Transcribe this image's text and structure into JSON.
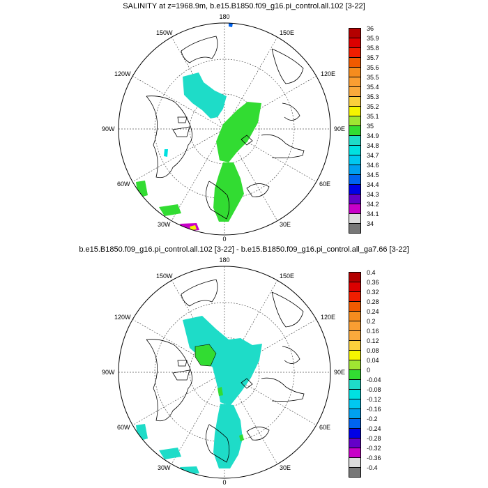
{
  "maps": [
    {
      "title": "SALINITY at z=1968.9m, b.e15.B1850.f09_g16.pi_control.all.102 [3-22]",
      "lon_labels": {
        "top": "180",
        "bottom": "0",
        "left": "90W",
        "right": "90E",
        "ul150": "150W",
        "ul120": "120W",
        "ll60": "60W",
        "ll30": "30W",
        "ur150": "150E",
        "ur120": "120E",
        "lr60": "60E",
        "lr30": "30E"
      },
      "colorbar": {
        "labels": [
          "36",
          "35.9",
          "35.8",
          "35.7",
          "35.6",
          "35.5",
          "35.4",
          "35.3",
          "35.2",
          "35.1",
          "35",
          "34.9",
          "34.8",
          "34.7",
          "34.6",
          "34.5",
          "34.4",
          "34.3",
          "34.2",
          "34.1",
          "34"
        ],
        "colors": [
          "#b40000",
          "#dc0000",
          "#f01e00",
          "#f05a00",
          "#f58c1e",
          "#fa9e32",
          "#faaa3c",
          "#fbd03c",
          "#f5f500",
          "#a0e632",
          "#32dc32",
          "#1edcc8",
          "#00e1e1",
          "#00c8f0",
          "#00a0f0",
          "#0064f0",
          "#0000e6",
          "#6400c8",
          "#c800c8",
          "#dcdcdc",
          "#787878"
        ]
      }
    },
    {
      "title": "b.e15.B1850.f09_g16.pi_control.all.102 [3-22] - b.e15.B1850.f09_g16.pi_control.all_ga7.66 [3-22]",
      "lon_labels": {
        "top": "180",
        "bottom": "0",
        "left": "90W",
        "right": "90E",
        "ul150": "150W",
        "ul120": "120W",
        "ll60": "60W",
        "ll30": "30W",
        "ur150": "150E",
        "ur120": "120E",
        "lr60": "60E",
        "lr30": "30E"
      },
      "colorbar": {
        "labels": [
          "0.4",
          "0.36",
          "0.32",
          "0.28",
          "0.24",
          "0.2",
          "0.16",
          "0.12",
          "0.08",
          "0.04",
          "0",
          "-0.04",
          "-0.08",
          "-0.12",
          "-0.16",
          "-0.2",
          "-0.24",
          "-0.28",
          "-0.32",
          "-0.36",
          "-0.4"
        ],
        "colors": [
          "#b40000",
          "#dc0000",
          "#f01e00",
          "#f05a00",
          "#f58c1e",
          "#fa9e32",
          "#faaa3c",
          "#fbd03c",
          "#f5f500",
          "#a0e632",
          "#32dc32",
          "#1edcc8",
          "#00e1e1",
          "#00c8f0",
          "#00a0f0",
          "#0064f0",
          "#0000e6",
          "#6400c8",
          "#c800c8",
          "#dcdcdc",
          "#787878"
        ]
      }
    }
  ]
}
